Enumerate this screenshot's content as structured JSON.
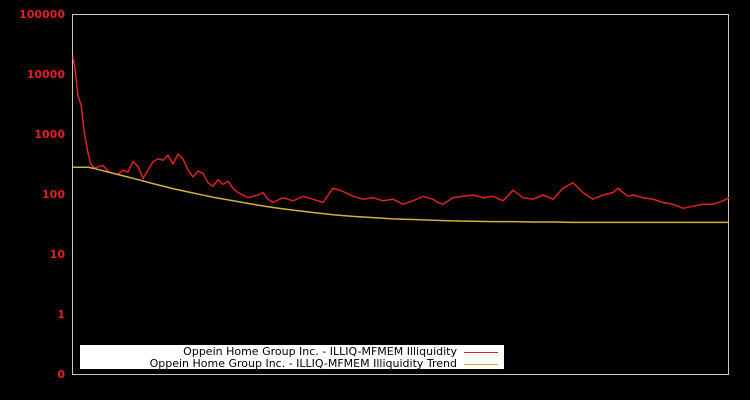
{
  "chart_data": {
    "type": "line",
    "title": "",
    "xlabel": "",
    "ylabel": "",
    "yscale": "log",
    "ylim": [
      0.1,
      100000
    ],
    "yticks": [
      "100000",
      "10000",
      "1000",
      "100",
      "10",
      "1",
      "0"
    ],
    "grid": false,
    "legend_position": "lower-left",
    "background": "#000000",
    "axis_color": "#c8c8c8",
    "tick_label_color": "#e0202a",
    "series": [
      {
        "name": "Oppein Home Group Inc. - ILLIQ-MFMEM Illiquidity",
        "color": "#e0202a",
        "x": [
          0,
          2,
          5,
          8,
          11,
          15,
          18,
          22,
          26,
          30,
          35,
          40,
          45,
          50,
          55,
          60,
          65,
          70,
          75,
          80,
          85,
          90,
          95,
          100,
          105,
          110,
          115,
          120,
          125,
          130,
          135,
          140,
          145,
          150,
          155,
          160,
          165,
          170,
          175,
          180,
          185,
          190,
          195,
          200,
          210,
          220,
          230,
          240,
          250,
          260,
          270,
          280,
          290,
          300,
          310,
          320,
          330,
          340,
          350,
          360,
          365,
          370,
          380,
          390,
          400,
          410,
          420,
          430,
          440,
          450,
          460,
          470,
          480,
          490,
          500,
          510,
          520,
          530,
          540,
          545,
          550,
          555,
          560,
          570,
          580,
          590,
          600,
          610,
          620,
          630,
          640,
          650,
          656
        ],
        "values": [
          20000,
          13000,
          4500,
          3200,
          1200,
          500,
          320,
          280,
          300,
          310,
          250,
          230,
          220,
          260,
          240,
          360,
          300,
          190,
          260,
          360,
          400,
          380,
          460,
          330,
          480,
          400,
          260,
          200,
          250,
          230,
          160,
          140,
          180,
          150,
          170,
          130,
          110,
          100,
          90,
          95,
          100,
          110,
          85,
          75,
          90,
          80,
          95,
          85,
          75,
          130,
          115,
          95,
          85,
          90,
          80,
          85,
          70,
          80,
          95,
          85,
          75,
          70,
          90,
          95,
          100,
          90,
          95,
          80,
          120,
          90,
          85,
          100,
          85,
          130,
          160,
          110,
          85,
          100,
          110,
          130,
          110,
          95,
          100,
          90,
          85,
          75,
          70,
          60,
          65,
          70,
          70,
          80,
          90
        ]
      },
      {
        "name": "Oppein Home Group Inc. - ILLIQ-MFMEM Illiquidity Trend",
        "color": "#d4b040",
        "x": [
          0,
          15,
          20,
          40,
          60,
          80,
          100,
          120,
          140,
          160,
          180,
          200,
          220,
          240,
          260,
          280,
          300,
          320,
          340,
          360,
          380,
          400,
          420,
          440,
          460,
          480,
          500,
          520,
          540,
          560,
          580,
          600,
          620,
          640,
          656
        ],
        "values": [
          290,
          290,
          280,
          230,
          190,
          155,
          128,
          108,
          92,
          80,
          70,
          62,
          56,
          51,
          47,
          44,
          42,
          40,
          39,
          38,
          37,
          36.5,
          36,
          36,
          35.5,
          35.5,
          35,
          35,
          35,
          35,
          35,
          35,
          35,
          35,
          35
        ]
      }
    ]
  },
  "legend": {
    "items": [
      {
        "label": "Oppein Home Group Inc. - ILLIQ-MFMEM Illiquidity",
        "color": "#e0202a"
      },
      {
        "label": "Oppein Home Group Inc. - ILLIQ-MFMEM Illiquidity Trend",
        "color": "#d4b040"
      }
    ]
  }
}
